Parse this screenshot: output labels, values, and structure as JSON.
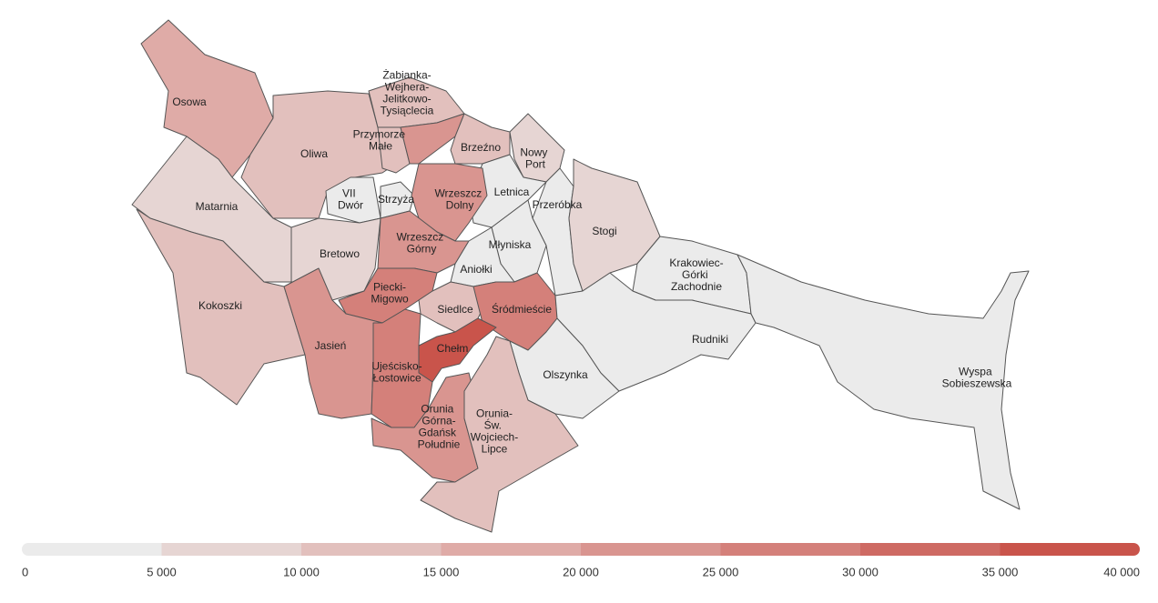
{
  "chart_data": {
    "type": "choropleth",
    "regions": [
      {
        "name": "Osowa",
        "value": 17000
      },
      {
        "name": "Oliwa",
        "value": 13000
      },
      {
        "name": "Matarnia",
        "value": 8000
      },
      {
        "name": "Kokoszki",
        "value": 13000
      },
      {
        "name": "VII Dwór",
        "value": 3000
      },
      {
        "name": "Strzyża",
        "value": 4000
      },
      {
        "name": "Bretowo",
        "value": 8000
      },
      {
        "name": "Żabianka-Wejhera-Jelitkowo-Tysiąclecia",
        "value": 13000
      },
      {
        "name": "Przymorze Małe",
        "value": 13000
      },
      {
        "name": null,
        "value": 22000
      },
      {
        "name": "Brzeźno",
        "value": 12000
      },
      {
        "name": "Nowy Port",
        "value": 9000
      },
      {
        "name": "Letnica",
        "value": 2000
      },
      {
        "name": "Wrzeszcz Dolny",
        "value": 23000
      },
      {
        "name": "Wrzeszcz Górny",
        "value": 23000
      },
      {
        "name": "Przeróbka",
        "value": 2000
      },
      {
        "name": "Stogi",
        "value": 9000
      },
      {
        "name": "Młyniska",
        "value": 1000
      },
      {
        "name": "Aniołki",
        "value": 3000
      },
      {
        "name": "Piecki-Migowo",
        "value": 28000
      },
      {
        "name": "Siedlce",
        "value": 13000
      },
      {
        "name": "Śródmieście",
        "value": 26000
      },
      {
        "name": "Jasień",
        "value": 23000
      },
      {
        "name": "Chełm",
        "value": 36000
      },
      {
        "name": "Ujeścisko-Łostowice",
        "value": 26000
      },
      {
        "name": "Olszynka",
        "value": 2000
      },
      {
        "name": "Orunia Górna-Gdańsk Południe",
        "value": 23000
      },
      {
        "name": "Orunia-Św. Wojciech-Lipce",
        "value": 12000
      },
      {
        "name": "Krakowiec-Górki Zachodnie",
        "value": 1000
      },
      {
        "name": "Rudniki",
        "value": 1000
      },
      {
        "name": "Wyspa Sobieszewska",
        "value": 3000
      }
    ],
    "scale": {
      "lim": [
        0,
        40000
      ],
      "ticks": [
        0,
        {
          "value": 5000,
          "label": "5 000"
        },
        {
          "value": 10000,
          "label": "10 000"
        },
        {
          "value": 15000,
          "label": "15 000"
        },
        {
          "value": 20000,
          "label": "20 000"
        },
        {
          "value": 25000,
          "label": "25 000"
        },
        {
          "value": 30000,
          "label": "30 000"
        },
        {
          "value": 35000,
          "label": "35 000"
        },
        {
          "value": 40000,
          "label": "40 000"
        }
      ],
      "colors": [
        "#ebebeb",
        "#e6d5d3",
        "#e2c0bd",
        "#dfaba7",
        "#d99590",
        "#d4807a",
        "#ce6a63",
        "#c9544b"
      ]
    }
  }
}
